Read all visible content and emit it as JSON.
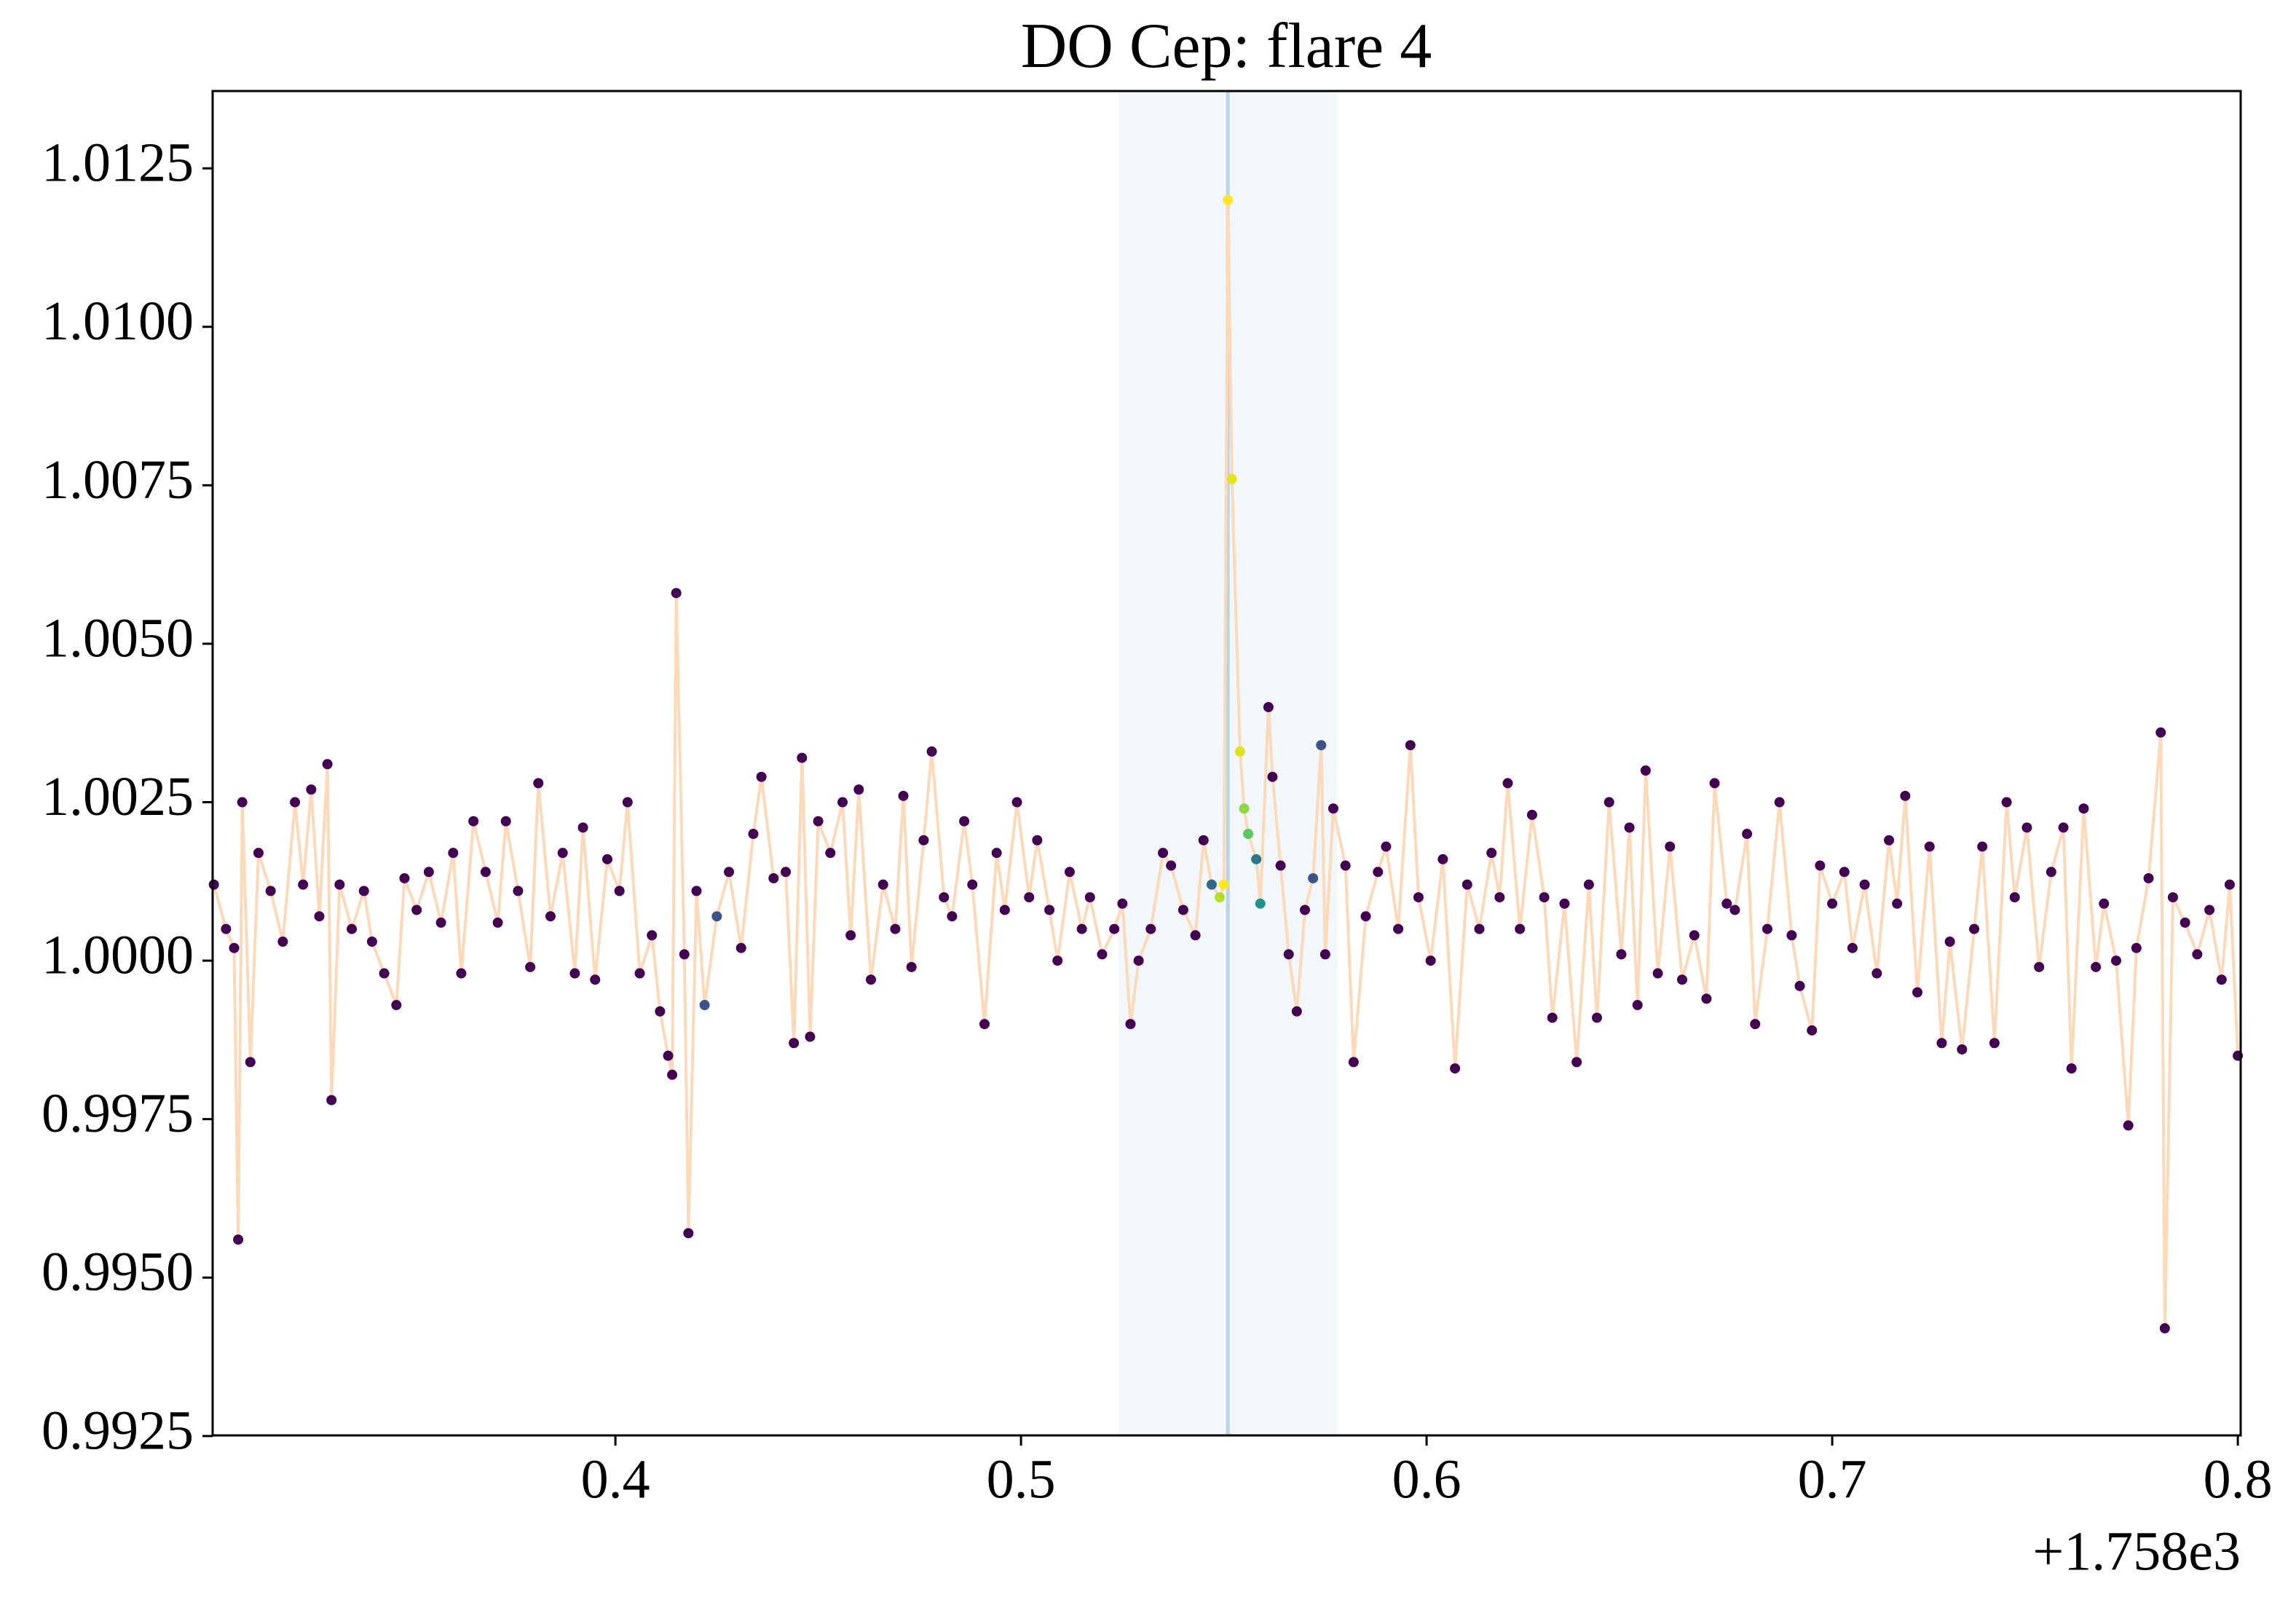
{
  "chart_data": {
    "type": "scatter",
    "title": "DO Cep: flare 4",
    "offset_label": "+1.758e3",
    "xlim": [
      0.3007,
      0.8007
    ],
    "ylim": [
      0.99251,
      1.01372
    ],
    "xticks": [
      0.4,
      0.5,
      0.6,
      0.7,
      0.8
    ],
    "yticks": [
      0.9925,
      {
        "value": 0.995,
        "label": "0.9950"
      },
      0.9975,
      {
        "value": 1.0,
        "label": "1.0000"
      },
      1.0025,
      {
        "value": 1.005,
        "label": "1.0050"
      },
      1.0075,
      {
        "value": 1.01,
        "label": "1.0100"
      },
      1.0125
    ],
    "span": [
      0.524,
      0.578
    ],
    "span_color": "#f2f7fa",
    "vline": 0.551,
    "vline_color": "#b9d4e6",
    "series": [
      {
        "line_color": "#fcd9b9",
        "x": [
          0.301,
          0.304,
          0.306,
          0.307,
          0.308,
          0.31,
          0.312,
          0.315,
          0.318,
          0.321,
          0.323,
          0.325,
          0.327,
          0.329,
          0.33,
          0.332,
          0.335,
          0.338,
          0.34,
          0.343,
          0.346,
          0.348,
          0.351,
          0.354,
          0.357,
          0.36,
          0.362,
          0.365,
          0.368,
          0.371,
          0.373,
          0.376,
          0.379,
          0.381,
          0.384,
          0.387,
          0.39,
          0.392,
          0.395,
          0.398,
          0.401,
          0.403,
          0.406,
          0.409,
          0.411,
          0.413,
          0.414,
          0.415,
          0.417,
          0.418,
          0.42,
          0.422,
          0.425,
          0.428,
          0.431,
          0.434,
          0.436,
          0.439,
          0.442,
          0.444,
          0.446,
          0.448,
          0.45,
          0.453,
          0.456,
          0.458,
          0.46,
          0.463,
          0.466,
          0.469,
          0.471,
          0.473,
          0.476,
          0.478,
          0.481,
          0.483,
          0.486,
          0.488,
          0.491,
          0.494,
          0.496,
          0.499,
          0.502,
          0.504,
          0.507,
          0.509,
          0.512,
          0.515,
          0.517,
          0.52,
          0.523,
          0.525,
          0.527,
          0.529,
          0.532,
          0.535,
          0.537,
          0.54,
          0.543,
          0.545,
          0.547,
          0.549,
          0.55,
          0.551,
          0.552,
          0.554,
          0.555,
          0.556,
          0.558,
          0.559,
          0.561,
          0.562,
          0.564,
          0.566,
          0.568,
          0.57,
          0.572,
          0.574,
          0.575,
          0.577,
          0.58,
          0.582,
          0.585,
          0.588,
          0.59,
          0.593,
          0.596,
          0.598,
          0.601,
          0.604,
          0.607,
          0.61,
          0.613,
          0.616,
          0.618,
          0.62,
          0.623,
          0.626,
          0.629,
          0.631,
          0.634,
          0.637,
          0.64,
          0.642,
          0.645,
          0.648,
          0.65,
          0.652,
          0.654,
          0.657,
          0.66,
          0.663,
          0.666,
          0.669,
          0.671,
          0.674,
          0.676,
          0.679,
          0.681,
          0.684,
          0.687,
          0.69,
          0.692,
          0.695,
          0.697,
          0.7,
          0.703,
          0.705,
          0.708,
          0.711,
          0.714,
          0.716,
          0.718,
          0.721,
          0.724,
          0.727,
          0.729,
          0.732,
          0.735,
          0.737,
          0.74,
          0.743,
          0.745,
          0.748,
          0.751,
          0.754,
          0.757,
          0.759,
          0.762,
          0.765,
          0.767,
          0.77,
          0.773,
          0.775,
          0.778,
          0.781,
          0.782,
          0.784,
          0.787,
          0.79,
          0.793,
          0.796,
          0.798,
          0.8
        ],
        "values": [
          1.0012,
          1.0005,
          1.0002,
          0.9956,
          1.0025,
          0.9984,
          1.0017,
          1.0011,
          1.0003,
          1.0025,
          1.0012,
          1.0027,
          1.0007,
          1.0031,
          0.9978,
          1.0012,
          1.0005,
          1.0011,
          1.0003,
          0.9998,
          0.9993,
          1.0013,
          1.0008,
          1.0014,
          1.0006,
          1.0017,
          0.9998,
          1.0022,
          1.0014,
          1.0006,
          1.0022,
          1.0011,
          0.9999,
          1.0028,
          1.0007,
          1.0017,
          0.9998,
          1.0021,
          0.9997,
          1.0016,
          1.0011,
          1.0025,
          0.9998,
          1.0004,
          0.9992,
          0.9985,
          0.9982,
          1.0058,
          1.0001,
          0.9957,
          1.0011,
          0.9993,
          1.0007,
          1.0014,
          1.0002,
          1.002,
          1.0029,
          1.0013,
          1.0014,
          0.9987,
          1.0032,
          0.9988,
          1.0022,
          1.0017,
          1.0025,
          1.0004,
          1.0027,
          0.9997,
          1.0012,
          1.0005,
          1.0026,
          0.9999,
          1.0019,
          1.0033,
          1.001,
          1.0007,
          1.0022,
          1.0012,
          0.999,
          1.0017,
          1.0008,
          1.0025,
          1.001,
          1.0019,
          1.0008,
          1.0,
          1.0014,
          1.0005,
          1.001,
          1.0001,
          1.0005,
          1.0009,
          0.999,
          1.0,
          1.0005,
          1.0017,
          1.0015,
          1.0008,
          1.0004,
          1.0019,
          1.0012,
          1.001,
          1.0012,
          1.012,
          1.0076,
          1.0033,
          1.0024,
          1.002,
          1.0016,
          1.0009,
          1.004,
          1.0029,
          1.0015,
          1.0001,
          0.9992,
          1.0008,
          1.0013,
          1.0034,
          1.0001,
          1.0024,
          1.0015,
          0.9984,
          1.0007,
          1.0014,
          1.0018,
          1.0005,
          1.0034,
          1.001,
          1.0,
          1.0016,
          0.9983,
          1.0012,
          1.0005,
          1.0017,
          1.001,
          1.0028,
          1.0005,
          1.0023,
          1.001,
          0.9991,
          1.0009,
          0.9984,
          1.0012,
          0.9991,
          1.0025,
          1.0001,
          1.0021,
          0.9993,
          1.003,
          0.9998,
          1.0018,
          0.9997,
          1.0004,
          0.9994,
          1.0028,
          1.0009,
          1.0008,
          1.002,
          0.999,
          1.0005,
          1.0025,
          1.0004,
          0.9996,
          0.9989,
          1.0015,
          1.0009,
          1.0014,
          1.0002,
          1.0012,
          0.9998,
          1.0019,
          1.0009,
          1.0026,
          0.9995,
          1.0018,
          0.9987,
          1.0003,
          0.9986,
          1.0005,
          1.0018,
          0.9987,
          1.0025,
          1.001,
          1.0021,
          0.9999,
          1.0014,
          1.0021,
          0.9983,
          1.0024,
          0.9999,
          1.0009,
          1.0,
          0.9974,
          1.0002,
          1.0013,
          1.0036,
          0.9942,
          1.001,
          1.0006,
          1.0001,
          1.0008,
          0.9997,
          1.0012,
          0.9985
        ],
        "colors": [
          "#440154",
          "#440154",
          "#440154",
          "#440154",
          "#440154",
          "#440154",
          "#440154",
          "#440154",
          "#440154",
          "#440154",
          "#440154",
          "#440154",
          "#440154",
          "#440154",
          "#440154",
          "#440154",
          "#440154",
          "#440154",
          "#440154",
          "#440154",
          "#440154",
          "#440154",
          "#440154",
          "#440154",
          "#440154",
          "#440154",
          "#440154",
          "#440154",
          "#440154",
          "#440154",
          "#440154",
          "#440154",
          "#440154",
          "#440154",
          "#440154",
          "#440154",
          "#440154",
          "#440154",
          "#440154",
          "#440154",
          "#440154",
          "#440154",
          "#440154",
          "#440154",
          "#440154",
          "#440154",
          "#440154",
          "#440154",
          "#440154",
          "#440154",
          "#440154",
          "#3b528b",
          "#3b528b",
          "#440154",
          "#440154",
          "#440154",
          "#440154",
          "#440154",
          "#440154",
          "#440154",
          "#440154",
          "#440154",
          "#440154",
          "#440154",
          "#440154",
          "#440154",
          "#440154",
          "#440154",
          "#440154",
          "#440154",
          "#440154",
          "#440154",
          "#440154",
          "#440154",
          "#440154",
          "#440154",
          "#440154",
          "#440154",
          "#440154",
          "#440154",
          "#440154",
          "#440154",
          "#440154",
          "#440154",
          "#440154",
          "#440154",
          "#440154",
          "#440154",
          "#440154",
          "#440154",
          "#440154",
          "#440154",
          "#440154",
          "#440154",
          "#440154",
          "#440154",
          "#440154",
          "#440154",
          "#440154",
          "#440154",
          "#31688e",
          "#b5de2b",
          "#fde725",
          "#fde725",
          "#e5e419",
          "#dde318",
          "#8fd744",
          "#5ec962",
          "#2a788e",
          "#21918c",
          "#440154",
          "#440154",
          "#440154",
          "#440154",
          "#440154",
          "#440154",
          "#3b528b",
          "#3b528b",
          "#440154",
          "#440154",
          "#440154",
          "#440154",
          "#440154",
          "#440154",
          "#440154",
          "#440154",
          "#440154",
          "#440154",
          "#440154",
          "#440154",
          "#440154",
          "#440154",
          "#440154",
          "#440154",
          "#440154",
          "#440154",
          "#440154",
          "#440154",
          "#440154",
          "#440154",
          "#440154",
          "#440154",
          "#440154",
          "#440154",
          "#440154",
          "#440154",
          "#440154",
          "#440154",
          "#440154",
          "#440154",
          "#440154",
          "#440154",
          "#440154",
          "#440154",
          "#440154",
          "#440154",
          "#440154",
          "#440154",
          "#440154",
          "#440154",
          "#440154",
          "#440154",
          "#440154",
          "#440154",
          "#440154",
          "#440154",
          "#440154",
          "#440154",
          "#440154",
          "#440154",
          "#440154",
          "#440154",
          "#440154",
          "#440154",
          "#440154",
          "#440154",
          "#440154",
          "#440154",
          "#440154",
          "#440154",
          "#440154",
          "#440154",
          "#440154",
          "#440154",
          "#440154",
          "#440154",
          "#440154",
          "#440154",
          "#440154",
          "#440154",
          "#440154",
          "#440154",
          "#440154",
          "#440154",
          "#440154",
          "#440154",
          "#440154",
          "#440154",
          "#440154",
          "#440154",
          "#440154",
          "#440154",
          "#440154",
          "#440154"
        ]
      }
    ]
  }
}
